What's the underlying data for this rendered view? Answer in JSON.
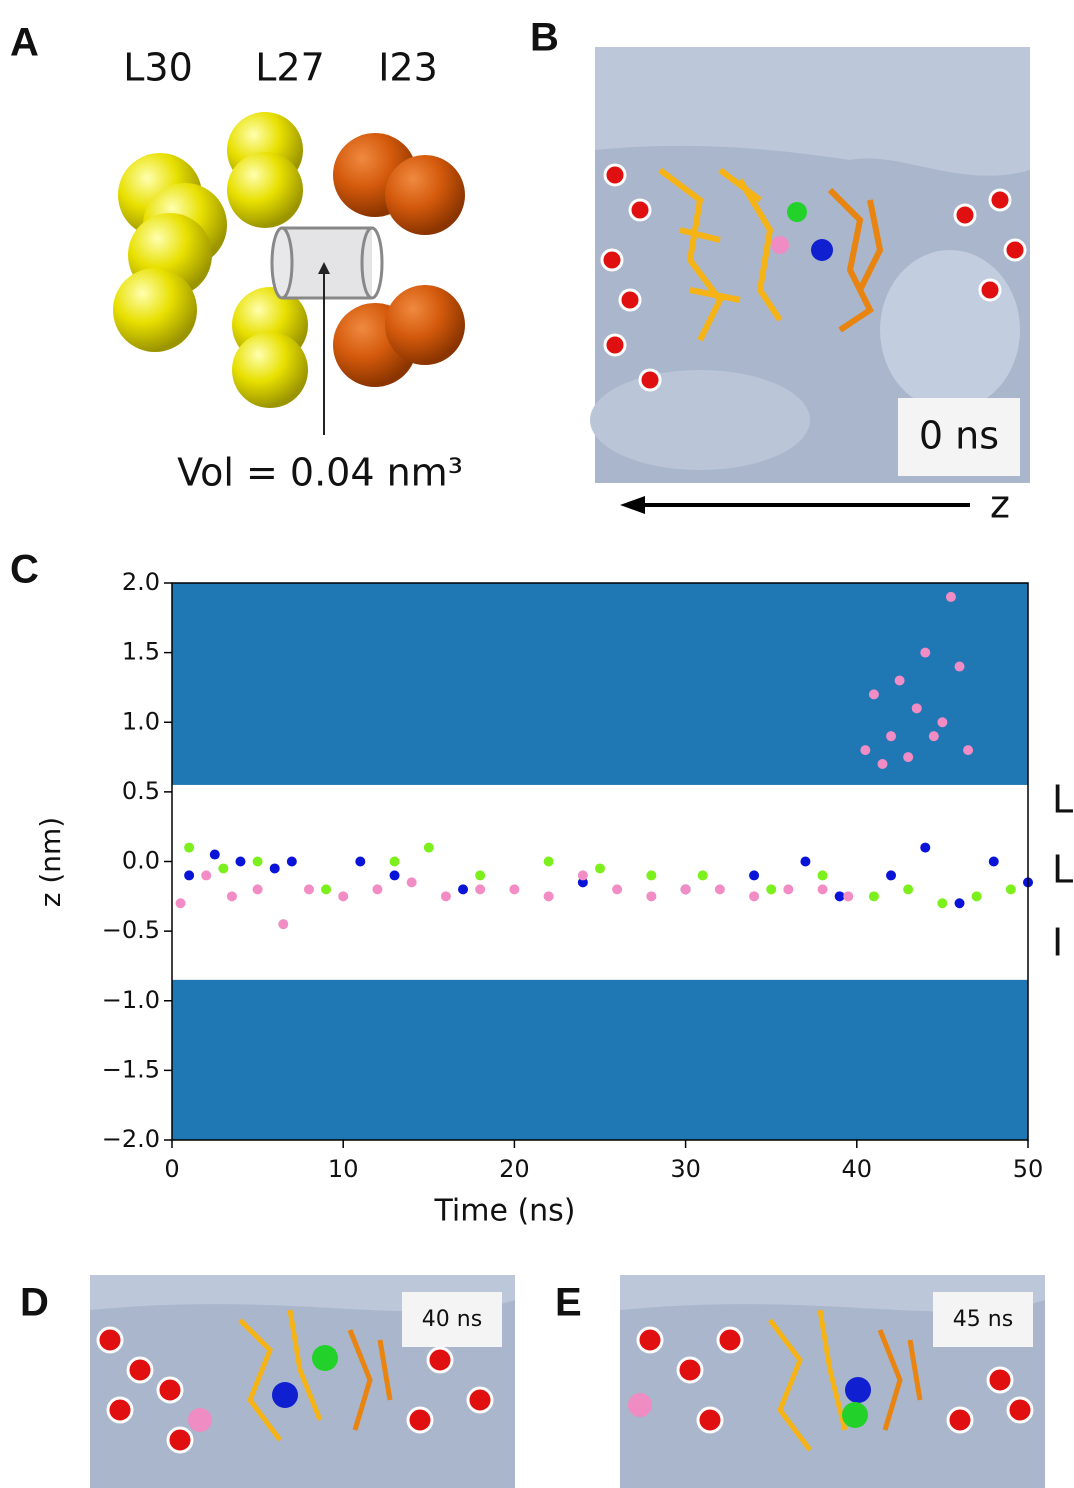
{
  "panels": {
    "a": {
      "label": "A",
      "residues": [
        "L30",
        "L27",
        "I23"
      ],
      "volume": "Vol = 0.04 nm³"
    },
    "b": {
      "label": "B",
      "time": "0 ns",
      "axis": "z"
    },
    "c": {
      "label": "C"
    },
    "d": {
      "label": "D",
      "time": "40 ns"
    },
    "e": {
      "label": "E",
      "time": "45 ns"
    }
  },
  "chart_data": {
    "type": "scatter",
    "xlabel": "Time (ns)",
    "ylabel": "z (nm)",
    "xlim": [
      0,
      50
    ],
    "ylim": [
      -2,
      2
    ],
    "xticks": [
      0,
      10,
      20,
      30,
      40,
      50
    ],
    "yticks": [
      {
        "value": 2,
        "label": "2.0"
      },
      1.5,
      {
        "value": 1,
        "label": "1.0"
      },
      0.5,
      {
        "value": 0,
        "label": "0.0"
      },
      {
        "value": -0.5,
        "label": "−0.5"
      },
      {
        "value": -1,
        "label": "−1.0"
      },
      {
        "value": -1.5,
        "label": "−1.5"
      },
      {
        "value": -2,
        "label": "−2.0"
      }
    ],
    "bands": [
      {
        "color": "#1f77b4",
        "from": 0.55,
        "to": 2
      },
      {
        "color": "#1f77b4",
        "from": -2,
        "to": -0.85
      }
    ],
    "side_labels": [
      "L",
      "L",
      "I"
    ],
    "series": [
      {
        "color": "#0a14d8",
        "x": [
          1,
          2.5,
          4,
          6,
          7,
          11,
          13,
          17,
          24,
          30,
          34,
          37,
          39,
          42,
          44,
          46,
          48,
          50
        ],
        "values": [
          -0.1,
          0.05,
          0.0,
          -0.05,
          0.0,
          0.0,
          -0.1,
          -0.2,
          -0.15,
          -0.2,
          -0.1,
          0.0,
          -0.25,
          -0.1,
          0.1,
          -0.3,
          0.0,
          -0.15
        ]
      },
      {
        "color": "#7cf01c",
        "x": [
          1,
          3,
          5,
          9,
          13,
          15,
          18,
          22,
          25,
          28,
          31,
          35,
          38,
          41,
          43,
          45,
          47,
          49
        ],
        "values": [
          0.1,
          -0.05,
          0.0,
          -0.2,
          0.0,
          0.1,
          -0.1,
          0.0,
          -0.05,
          -0.1,
          -0.1,
          -0.2,
          -0.1,
          -0.25,
          -0.2,
          -0.3,
          -0.25,
          -0.2
        ]
      },
      {
        "color": "#f28cc4",
        "x": [
          0.5,
          2,
          3.5,
          5,
          6.5,
          8,
          10,
          12,
          14,
          16,
          18,
          20,
          22,
          24,
          26,
          28,
          30,
          32,
          34,
          36,
          38,
          39.5,
          40.5,
          41,
          41.5,
          42,
          42.5,
          43,
          43.5,
          44,
          44.5,
          45,
          45.5,
          46,
          46.5
        ],
        "values": [
          -0.3,
          -0.1,
          -0.25,
          -0.2,
          -0.45,
          -0.2,
          -0.25,
          -0.2,
          -0.15,
          -0.25,
          -0.2,
          -0.2,
          -0.25,
          -0.1,
          -0.2,
          -0.25,
          -0.2,
          -0.2,
          -0.25,
          -0.2,
          -0.2,
          -0.25,
          0.8,
          1.2,
          0.7,
          0.9,
          1.3,
          0.75,
          1.1,
          1.5,
          0.9,
          1.0,
          1.9,
          1.4,
          0.8
        ]
      }
    ]
  }
}
